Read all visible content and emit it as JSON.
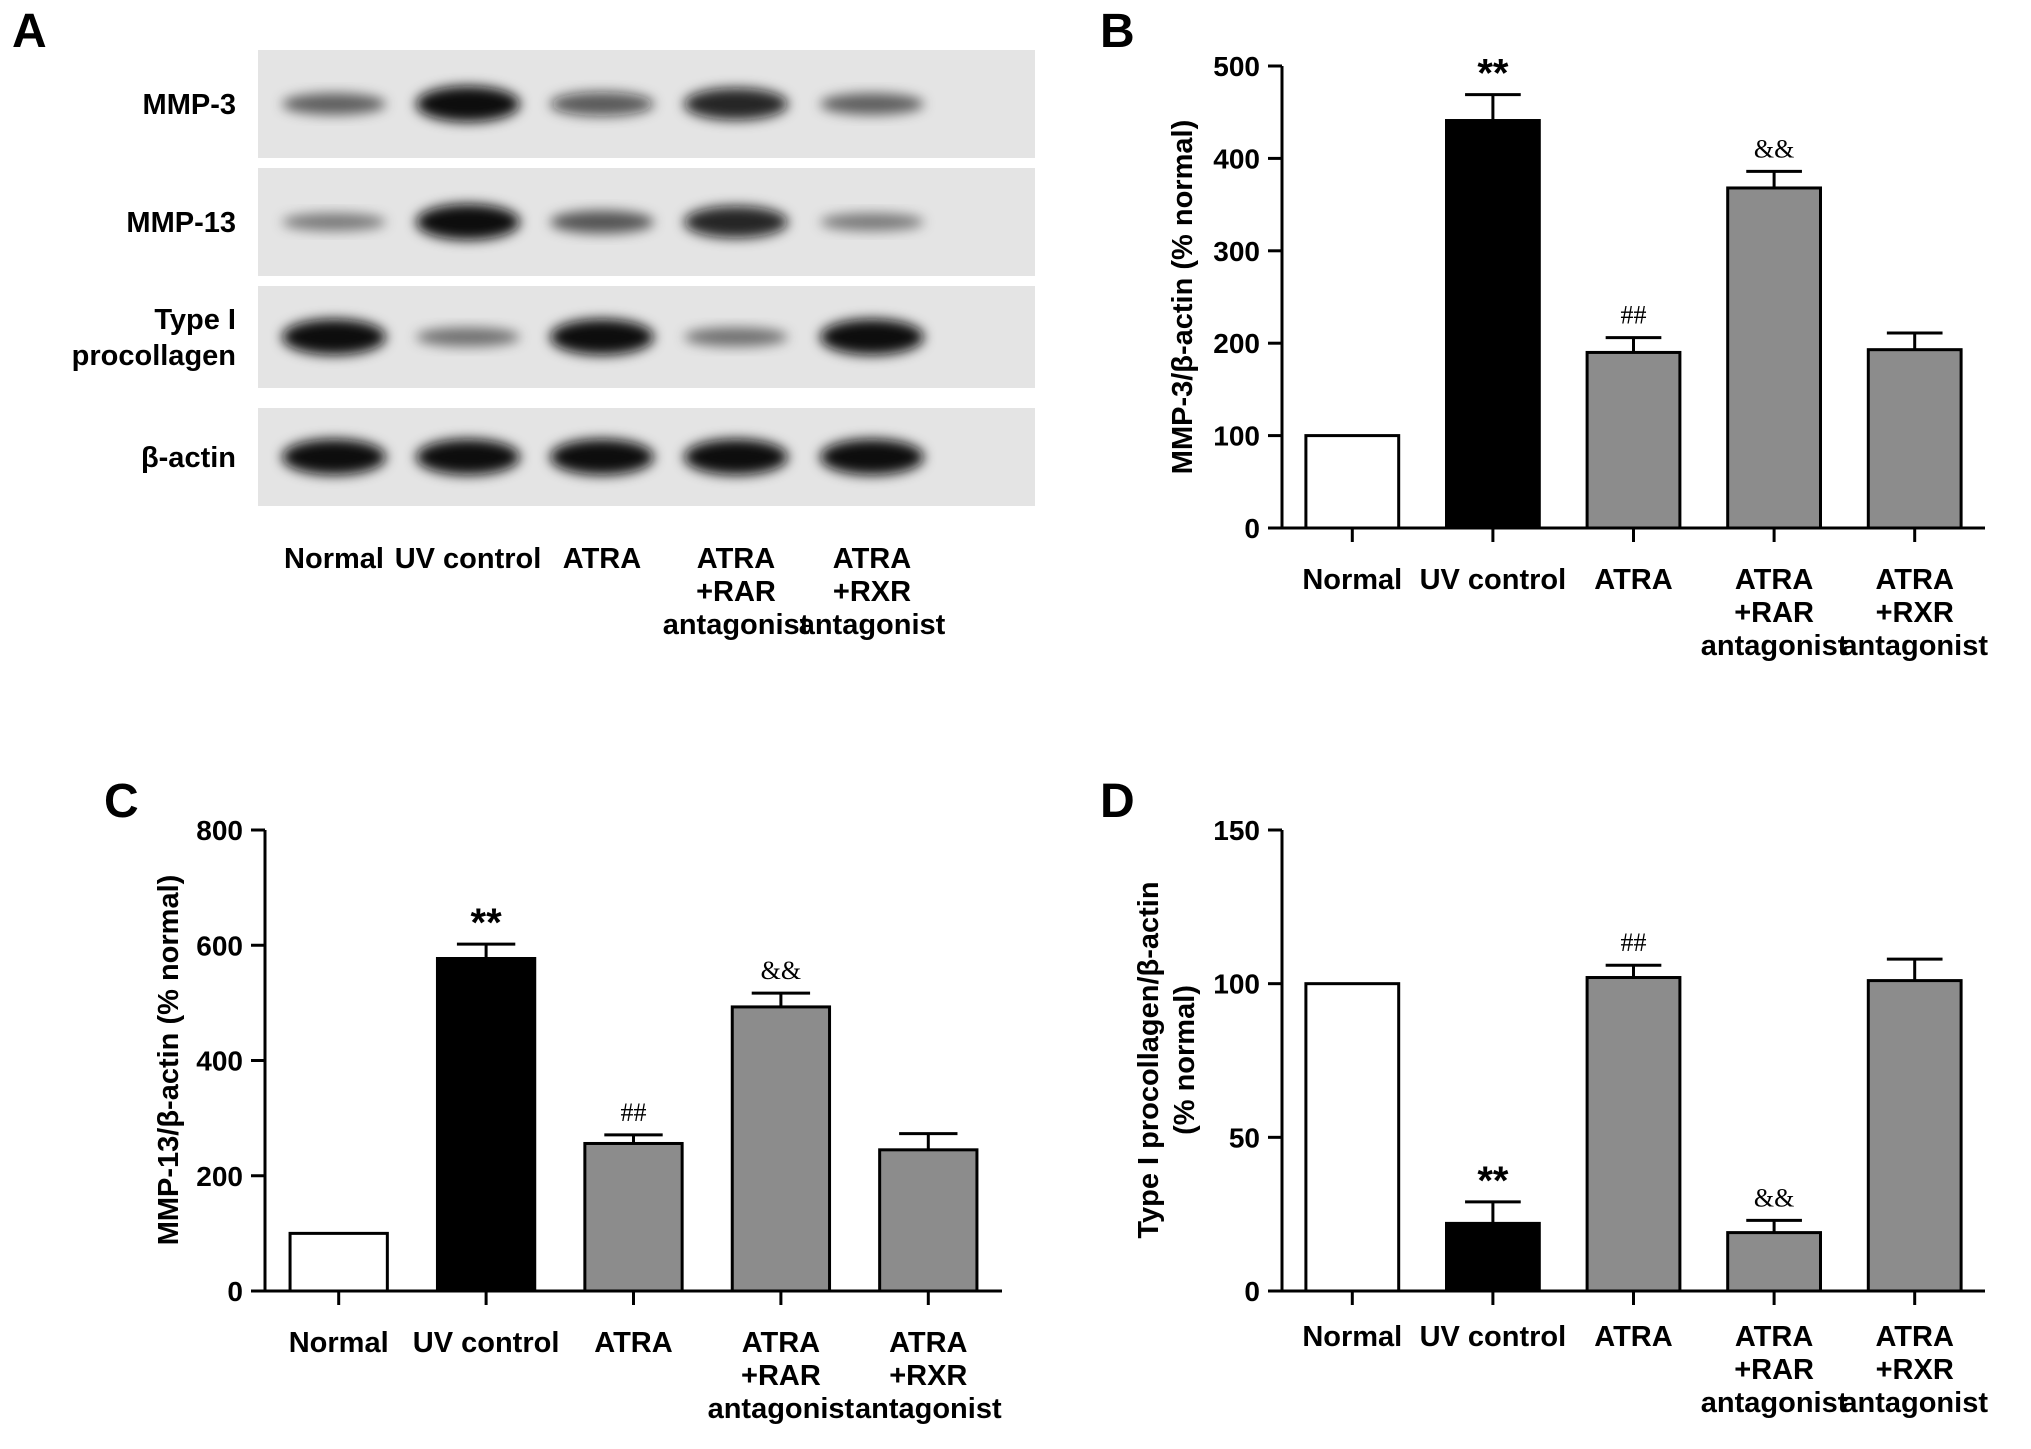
{
  "panels": {
    "a": "A",
    "b": "B",
    "c": "C",
    "d": "D"
  },
  "blot": {
    "rows": [
      {
        "label": "MMP-3",
        "intensity": [
          0.45,
          1.0,
          0.55,
          0.85,
          0.45
        ]
      },
      {
        "label": "MMP-13",
        "intensity": [
          0.3,
          1.0,
          0.5,
          0.85,
          0.3
        ]
      },
      {
        "label": "Type I\nprocollagen",
        "intensity": [
          1.0,
          0.35,
          1.0,
          0.35,
          1.0
        ]
      },
      {
        "label": "β-actin",
        "intensity": [
          1.0,
          1.0,
          1.0,
          1.0,
          1.0
        ]
      }
    ],
    "lanes": [
      "Normal",
      "UV control",
      "ATRA",
      "ATRA\n+RAR\nantagonist",
      "ATRA\n+RXR\nantagonist"
    ]
  },
  "chart_data": [
    {
      "type": "bar",
      "panel": "B",
      "categories": [
        "Normal",
        "UV control",
        "ATRA",
        "ATRA\n+RAR\nantagonist",
        "ATRA\n+RXR\nantagonist"
      ],
      "values": [
        100,
        441,
        190,
        368,
        193
      ],
      "errors": [
        0,
        28,
        16,
        18,
        18
      ],
      "annotations": [
        "",
        "**",
        "##",
        "&&",
        ""
      ],
      "bar_colors": [
        "#ffffff",
        "#000000",
        "#8c8c8c",
        "#8c8c8c",
        "#8c8c8c"
      ],
      "ylabel": "MMP-3/β-actin (% normal)",
      "ylim": [
        0,
        500
      ],
      "yticks": [
        0,
        100,
        200,
        300,
        400,
        500
      ]
    },
    {
      "type": "bar",
      "panel": "C",
      "categories": [
        "Normal",
        "UV control",
        "ATRA",
        "ATRA\n+RAR\nantagonist",
        "ATRA\n+RXR\nantagonist"
      ],
      "values": [
        100,
        577,
        256,
        493,
        245
      ],
      "errors": [
        0,
        25,
        15,
        24,
        28
      ],
      "annotations": [
        "",
        "**",
        "##",
        "&&",
        ""
      ],
      "bar_colors": [
        "#ffffff",
        "#000000",
        "#8c8c8c",
        "#8c8c8c",
        "#8c8c8c"
      ],
      "ylabel": "MMP-13/β-actin (% normal)",
      "ylim": [
        0,
        800
      ],
      "yticks": [
        0,
        200,
        400,
        600,
        800
      ]
    },
    {
      "type": "bar",
      "panel": "D",
      "categories": [
        "Normal",
        "UV control",
        "ATRA",
        "ATRA\n+RAR\nantagonist",
        "ATRA\n+RXR\nantagonist"
      ],
      "values": [
        100,
        22,
        102,
        19,
        101
      ],
      "errors": [
        0,
        7,
        4,
        4,
        7
      ],
      "annotations": [
        "",
        "**",
        "##",
        "&&",
        ""
      ],
      "bar_colors": [
        "#ffffff",
        "#000000",
        "#8c8c8c",
        "#8c8c8c",
        "#8c8c8c"
      ],
      "ylabel": "Type I procollagen/β-actin\n(% normal)",
      "ylim": [
        0,
        150
      ],
      "yticks": [
        0,
        50,
        100,
        150
      ]
    }
  ]
}
